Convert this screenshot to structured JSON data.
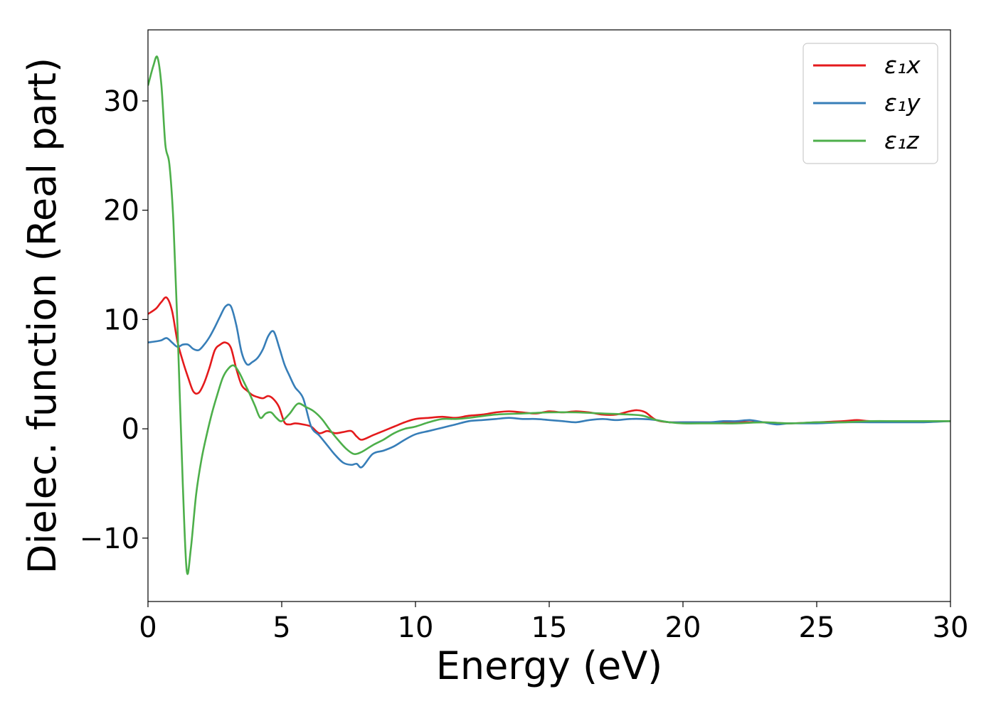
{
  "chart_data": {
    "type": "line",
    "xlabel": "Energy (eV)",
    "ylabel": "Dielec. function (Real part)",
    "xlim": [
      0,
      30
    ],
    "ylim": [
      -15.8,
      36.5
    ],
    "xticks": [
      0,
      5,
      10,
      15,
      20,
      25,
      30
    ],
    "xtick_labels": [
      "0",
      "5",
      "10",
      "15",
      "20",
      "25",
      "30"
    ],
    "yticks": [
      -10,
      0,
      10,
      20,
      30
    ],
    "ytick_labels": [
      "−10",
      "0",
      "10",
      "20",
      "30"
    ],
    "grid": false,
    "legend_position": "top-right",
    "series": [
      {
        "name": "ε₁x",
        "color": "#e41a1c",
        "x": [
          0,
          0.3,
          0.5,
          0.7,
          0.9,
          1.1,
          1.3,
          1.5,
          1.7,
          1.9,
          2.1,
          2.3,
          2.5,
          2.7,
          2.9,
          3.1,
          3.3,
          3.5,
          3.7,
          3.9,
          4.1,
          4.3,
          4.5,
          4.7,
          4.9,
          5.1,
          5.3,
          5.5,
          5.8,
          6.1,
          6.4,
          6.7,
          7.0,
          7.3,
          7.6,
          7.8,
          8.0,
          8.4,
          8.8,
          9.2,
          9.6,
          10.0,
          10.5,
          11.0,
          11.5,
          12.0,
          12.5,
          13.0,
          13.5,
          14.0,
          14.5,
          15.0,
          15.5,
          16.0,
          16.5,
          17.0,
          17.5,
          18.0,
          18.3,
          18.6,
          19.0,
          19.5,
          20.0,
          21.0,
          22.0,
          23.0,
          24.0,
          25.0,
          26.0,
          26.5,
          27.0,
          28.0,
          29.0,
          30.0
        ],
        "y": [
          10.5,
          11.0,
          11.6,
          12.0,
          10.8,
          8.0,
          6.2,
          4.7,
          3.4,
          3.3,
          4.2,
          5.6,
          7.2,
          7.7,
          7.9,
          7.4,
          5.5,
          4.0,
          3.5,
          3.1,
          2.9,
          2.8,
          3.0,
          2.7,
          2.0,
          0.6,
          0.4,
          0.5,
          0.4,
          0.2,
          -0.4,
          -0.2,
          -0.4,
          -0.3,
          -0.2,
          -0.7,
          -1.0,
          -0.6,
          -0.2,
          0.2,
          0.6,
          0.9,
          1.0,
          1.1,
          1.0,
          1.2,
          1.3,
          1.5,
          1.6,
          1.5,
          1.4,
          1.6,
          1.5,
          1.6,
          1.5,
          1.3,
          1.3,
          1.6,
          1.7,
          1.5,
          0.8,
          0.6,
          0.6,
          0.6,
          0.6,
          0.6,
          0.5,
          0.6,
          0.7,
          0.8,
          0.7,
          0.7,
          0.7,
          0.7
        ]
      },
      {
        "name": "ε₁y",
        "color": "#377eb8",
        "x": [
          0,
          0.3,
          0.5,
          0.7,
          0.9,
          1.1,
          1.3,
          1.5,
          1.7,
          1.9,
          2.1,
          2.3,
          2.5,
          2.7,
          2.9,
          3.1,
          3.3,
          3.5,
          3.7,
          3.9,
          4.1,
          4.3,
          4.5,
          4.7,
          4.9,
          5.1,
          5.3,
          5.5,
          5.8,
          6.1,
          6.4,
          6.7,
          7.0,
          7.3,
          7.6,
          7.8,
          8.0,
          8.4,
          8.8,
          9.2,
          9.6,
          10.0,
          10.5,
          11.0,
          11.5,
          12.0,
          12.5,
          13.0,
          13.5,
          14.0,
          14.5,
          15.0,
          15.5,
          16.0,
          16.5,
          17.0,
          17.5,
          18.0,
          18.5,
          19.0,
          19.5,
          20.0,
          21.0,
          21.5,
          22.0,
          22.5,
          23.0,
          23.5,
          24.0,
          25.0,
          26.0,
          27.0,
          28.0,
          29.0,
          30.0
        ],
        "y": [
          7.9,
          8.0,
          8.1,
          8.3,
          7.9,
          7.5,
          7.7,
          7.7,
          7.3,
          7.2,
          7.7,
          8.4,
          9.3,
          10.3,
          11.2,
          11.2,
          9.5,
          7.0,
          5.9,
          6.1,
          6.5,
          7.3,
          8.5,
          8.9,
          7.5,
          5.9,
          4.8,
          3.8,
          2.8,
          0.2,
          -0.6,
          -1.5,
          -2.4,
          -3.1,
          -3.3,
          -3.2,
          -3.5,
          -2.3,
          -2.0,
          -1.6,
          -1.0,
          -0.5,
          -0.2,
          0.1,
          0.4,
          0.7,
          0.8,
          0.9,
          1.0,
          0.9,
          0.9,
          0.8,
          0.7,
          0.6,
          0.8,
          0.9,
          0.8,
          0.9,
          0.9,
          0.8,
          0.6,
          0.6,
          0.6,
          0.7,
          0.7,
          0.8,
          0.6,
          0.4,
          0.5,
          0.5,
          0.6,
          0.6,
          0.6,
          0.6,
          0.7
        ]
      },
      {
        "name": "ε₁z",
        "color": "#4daf4a",
        "x": [
          0,
          0.2,
          0.35,
          0.5,
          0.65,
          0.8,
          0.95,
          1.1,
          1.3,
          1.45,
          1.6,
          1.8,
          2.0,
          2.2,
          2.4,
          2.6,
          2.8,
          3.0,
          3.2,
          3.4,
          3.6,
          3.8,
          4.0,
          4.2,
          4.4,
          4.6,
          4.8,
          5.0,
          5.3,
          5.6,
          5.9,
          6.2,
          6.5,
          6.8,
          7.1,
          7.4,
          7.7,
          8.0,
          8.4,
          8.8,
          9.2,
          9.6,
          10.0,
          10.5,
          11.0,
          11.5,
          12.0,
          13.0,
          14.0,
          15.0,
          16.0,
          17.0,
          18.0,
          18.5,
          19.0,
          19.5,
          20.0,
          21.0,
          22.0,
          23.0,
          24.0,
          25.0,
          26.0,
          27.0,
          28.0,
          29.0,
          30.0
        ],
        "y": [
          31.4,
          33.2,
          34.0,
          31.5,
          26.0,
          24.2,
          19.0,
          9.5,
          -5.0,
          -13.0,
          -11.0,
          -6.0,
          -2.8,
          -0.5,
          1.5,
          3.2,
          4.7,
          5.5,
          5.8,
          5.2,
          4.2,
          3.2,
          2.1,
          1.0,
          1.4,
          1.5,
          1.0,
          0.7,
          1.4,
          2.3,
          2.0,
          1.6,
          0.9,
          -0.1,
          -1.0,
          -1.8,
          -2.3,
          -2.1,
          -1.5,
          -1.0,
          -0.4,
          0.0,
          0.2,
          0.6,
          0.9,
          0.9,
          1.0,
          1.3,
          1.4,
          1.5,
          1.5,
          1.4,
          1.3,
          1.2,
          0.8,
          0.6,
          0.5,
          0.5,
          0.5,
          0.6,
          0.5,
          0.6,
          0.6,
          0.7,
          0.7,
          0.7,
          0.7
        ]
      }
    ]
  }
}
